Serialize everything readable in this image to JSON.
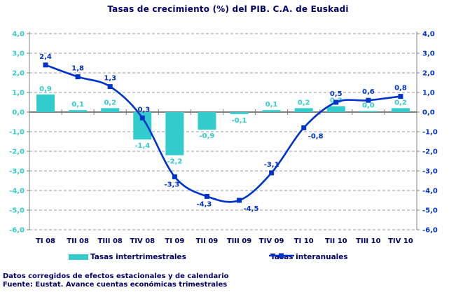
{
  "window": {
    "title": "Tasas de crecimiento (%) del PIB. C.A. de Euskadi"
  },
  "chart_data": {
    "type": "combo",
    "title": "Tasas de crecimiento (%) del PIB. C.A. de Euskadi",
    "categories": [
      "TI 08",
      "TII 08",
      "TIII 08",
      "TIV 08",
      "TI 09",
      "TII 09",
      "TIII 09",
      "TIV 09",
      "TI 10",
      "TII 10",
      "TIII 10",
      "TIV 10"
    ],
    "series": [
      {
        "name": "Tasas intertrimestrales",
        "type": "bar",
        "color": "#33CCCC",
        "values": [
          0.9,
          0.1,
          0.2,
          -1.4,
          -2.2,
          -0.9,
          -0.1,
          0.1,
          0.2,
          0.3,
          0.0,
          0.2
        ],
        "labels": [
          "0,9",
          "0,1",
          "0,2",
          "-1,4",
          "-2,2",
          "-0,9",
          "-0,1",
          "0,1",
          "0,2",
          "0,3",
          "0,0",
          "0,2"
        ]
      },
      {
        "name": "Tasas interanuales",
        "type": "line",
        "color": "#0033CC",
        "marker": "square",
        "values": [
          2.4,
          1.8,
          1.3,
          -0.3,
          -3.3,
          -4.3,
          -4.5,
          -3.1,
          -0.8,
          0.5,
          0.6,
          0.8
        ],
        "labels": [
          "2,4",
          "1,8",
          "1,3",
          "-0,3",
          "-3,3",
          "-4,3",
          "-4,5",
          "-3,1",
          "-0,8",
          "0,5",
          "0,6",
          "0,8"
        ],
        "label_side": [
          "above",
          "above",
          "above",
          "above",
          "below",
          "below",
          "below-right",
          "above",
          "below-right",
          "above",
          "above",
          "above"
        ]
      }
    ],
    "ylim": [
      -6,
      4
    ],
    "ytick_step": 1,
    "yticks_left": [
      "4,0",
      "3,0",
      "2,0",
      "1,0",
      "0,0",
      "-1,0",
      "-2,0",
      "-3,0",
      "-4,0",
      "-5,0",
      "-6,0"
    ],
    "yticks_right": [
      "4,0",
      "3,0",
      "2,0",
      "1,0",
      "0,0",
      "-1,0",
      "-2,0",
      "-3,0",
      "-4,0",
      "-5,0",
      "-6,0"
    ],
    "grid": "horizontal-dashed",
    "legend_position": "bottom"
  },
  "colors": {
    "bar": "#33CCCC",
    "line": "#0033CC",
    "heading_text": "#000066",
    "left_axis_text": "#33CCCC",
    "right_axis_text": "#0033CC",
    "gridline": "#999999",
    "axis": "#808080",
    "background": "#FFFFFF"
  },
  "legend": {
    "items": [
      {
        "label": "Tasas intertrimestrales",
        "icon": "bar-swatch-icon"
      },
      {
        "label": "Tasas interanuales",
        "icon": "line-marker-icon"
      }
    ]
  },
  "footer": {
    "line1": "Datos corregidos de efectos estacionales y de calendario",
    "line2": "Fuente: Eustat. Avance cuentas económicas trimestrales"
  }
}
